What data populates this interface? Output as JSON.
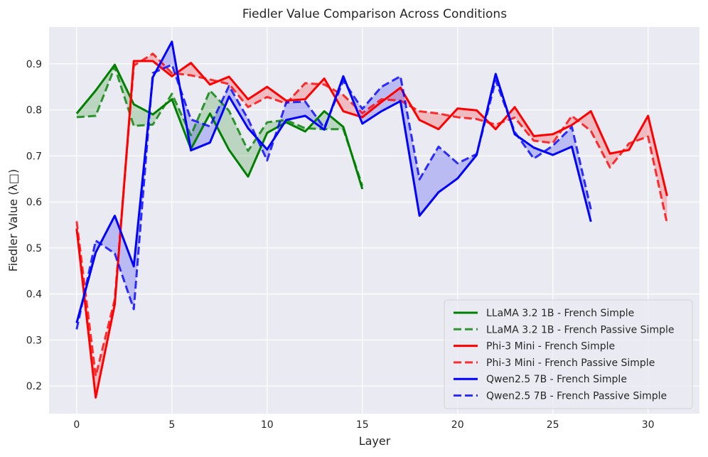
{
  "chart_data": {
    "type": "line",
    "title": "Fiedler Value Comparison Across Conditions",
    "xlabel": "Layer",
    "ylabel": "Fiedler Value (λ□)",
    "xlim": [
      -1.45,
      32.7
    ],
    "ylim": [
      0.14,
      0.98
    ],
    "xticks": [
      0,
      5,
      10,
      15,
      20,
      25,
      30
    ],
    "yticks": [
      0.2,
      0.3,
      0.4,
      0.5,
      0.6,
      0.7,
      0.8,
      0.9
    ],
    "ytick_labels": [
      "0.2",
      "0.3",
      "0.4",
      "0.5",
      "0.6",
      "0.7",
      "0.8",
      "0.9"
    ],
    "grid": true,
    "legend_position": "lower-right",
    "series": [
      {
        "name": "LLaMA 3.2 1B - French Simple",
        "color": "#008000",
        "style": "solid",
        "x": [
          0,
          1,
          2,
          3,
          4,
          5,
          6,
          7,
          8,
          9,
          10,
          11,
          12,
          13,
          14,
          15
        ],
        "values": [
          0.792,
          0.842,
          0.898,
          0.812,
          0.79,
          0.823,
          0.715,
          0.792,
          0.713,
          0.655,
          0.75,
          0.773,
          0.753,
          0.797,
          0.763,
          0.628
        ]
      },
      {
        "name": "LLaMA 3.2 1B - French Passive Simple",
        "color": "#008000",
        "style": "dashed",
        "x": [
          0,
          1,
          2,
          3,
          4,
          5,
          6,
          7,
          8,
          9,
          10,
          11,
          12,
          13,
          14,
          15
        ],
        "values": [
          0.784,
          0.787,
          0.893,
          0.765,
          0.768,
          0.835,
          0.745,
          0.842,
          0.798,
          0.711,
          0.773,
          0.778,
          0.76,
          0.758,
          0.758,
          0.635
        ]
      },
      {
        "name": "Phi-3 Mini - French Simple",
        "color": "#ff0000",
        "style": "solid",
        "x": [
          0,
          1,
          2,
          3,
          4,
          5,
          6,
          7,
          8,
          9,
          10,
          11,
          12,
          13,
          14,
          15,
          16,
          17,
          18,
          19,
          20,
          21,
          22,
          23,
          24,
          25,
          26,
          27,
          28,
          29,
          30,
          31
        ],
        "values": [
          0.542,
          0.175,
          0.377,
          0.906,
          0.906,
          0.873,
          0.902,
          0.855,
          0.872,
          0.823,
          0.85,
          0.82,
          0.823,
          0.868,
          0.797,
          0.784,
          0.817,
          0.848,
          0.778,
          0.758,
          0.803,
          0.799,
          0.758,
          0.806,
          0.743,
          0.747,
          0.767,
          0.797,
          0.705,
          0.713,
          0.787,
          0.613
        ]
      },
      {
        "name": "Phi-3 Mini - French Passive Simple",
        "color": "#ff0000",
        "style": "dashed",
        "x": [
          0,
          1,
          2,
          3,
          4,
          5,
          6,
          7,
          8,
          9,
          10,
          11,
          12,
          13,
          14,
          15,
          16,
          17,
          18,
          19,
          20,
          21,
          22,
          23,
          24,
          25,
          26,
          27,
          28,
          29,
          30,
          31
        ],
        "values": [
          0.558,
          0.222,
          0.388,
          0.896,
          0.922,
          0.88,
          0.875,
          0.866,
          0.856,
          0.806,
          0.828,
          0.814,
          0.858,
          0.855,
          0.832,
          0.793,
          0.823,
          0.82,
          0.797,
          0.792,
          0.784,
          0.78,
          0.768,
          0.783,
          0.733,
          0.728,
          0.787,
          0.754,
          0.675,
          0.727,
          0.742,
          0.553
        ]
      },
      {
        "name": "Qwen2.5 7B - French Simple",
        "color": "#0000ff",
        "style": "solid",
        "x": [
          0,
          1,
          2,
          3,
          4,
          5,
          6,
          7,
          8,
          9,
          10,
          11,
          12,
          13,
          14,
          15,
          16,
          17,
          18,
          19,
          20,
          21,
          22,
          23,
          24,
          25,
          26,
          27
        ],
        "values": [
          0.337,
          0.49,
          0.57,
          0.46,
          0.871,
          0.948,
          0.712,
          0.729,
          0.829,
          0.76,
          0.714,
          0.778,
          0.787,
          0.757,
          0.873,
          0.77,
          0.797,
          0.819,
          0.57,
          0.621,
          0.651,
          0.702,
          0.878,
          0.747,
          0.718,
          0.702,
          0.72,
          0.557
        ]
      },
      {
        "name": "Qwen2.5 7B - French Passive Simple",
        "color": "#0000ff",
        "style": "dashed",
        "x": [
          0,
          1,
          2,
          3,
          4,
          5,
          6,
          7,
          8,
          9,
          10,
          11,
          12,
          13,
          14,
          15,
          16,
          17,
          18,
          19,
          20,
          21,
          22,
          23,
          24,
          25,
          26,
          27
        ],
        "values": [
          0.323,
          0.516,
          0.488,
          0.367,
          0.88,
          0.898,
          0.779,
          0.764,
          0.852,
          0.78,
          0.69,
          0.816,
          0.818,
          0.761,
          0.863,
          0.802,
          0.85,
          0.873,
          0.649,
          0.72,
          0.684,
          0.704,
          0.864,
          0.752,
          0.694,
          0.722,
          0.763,
          0.584
        ]
      }
    ],
    "fill_between": [
      {
        "pair": [
          0,
          1
        ],
        "color": "#008000"
      },
      {
        "pair": [
          2,
          3
        ],
        "color": "#ff0000"
      },
      {
        "pair": [
          4,
          5
        ],
        "color": "#0000ff"
      }
    ]
  }
}
